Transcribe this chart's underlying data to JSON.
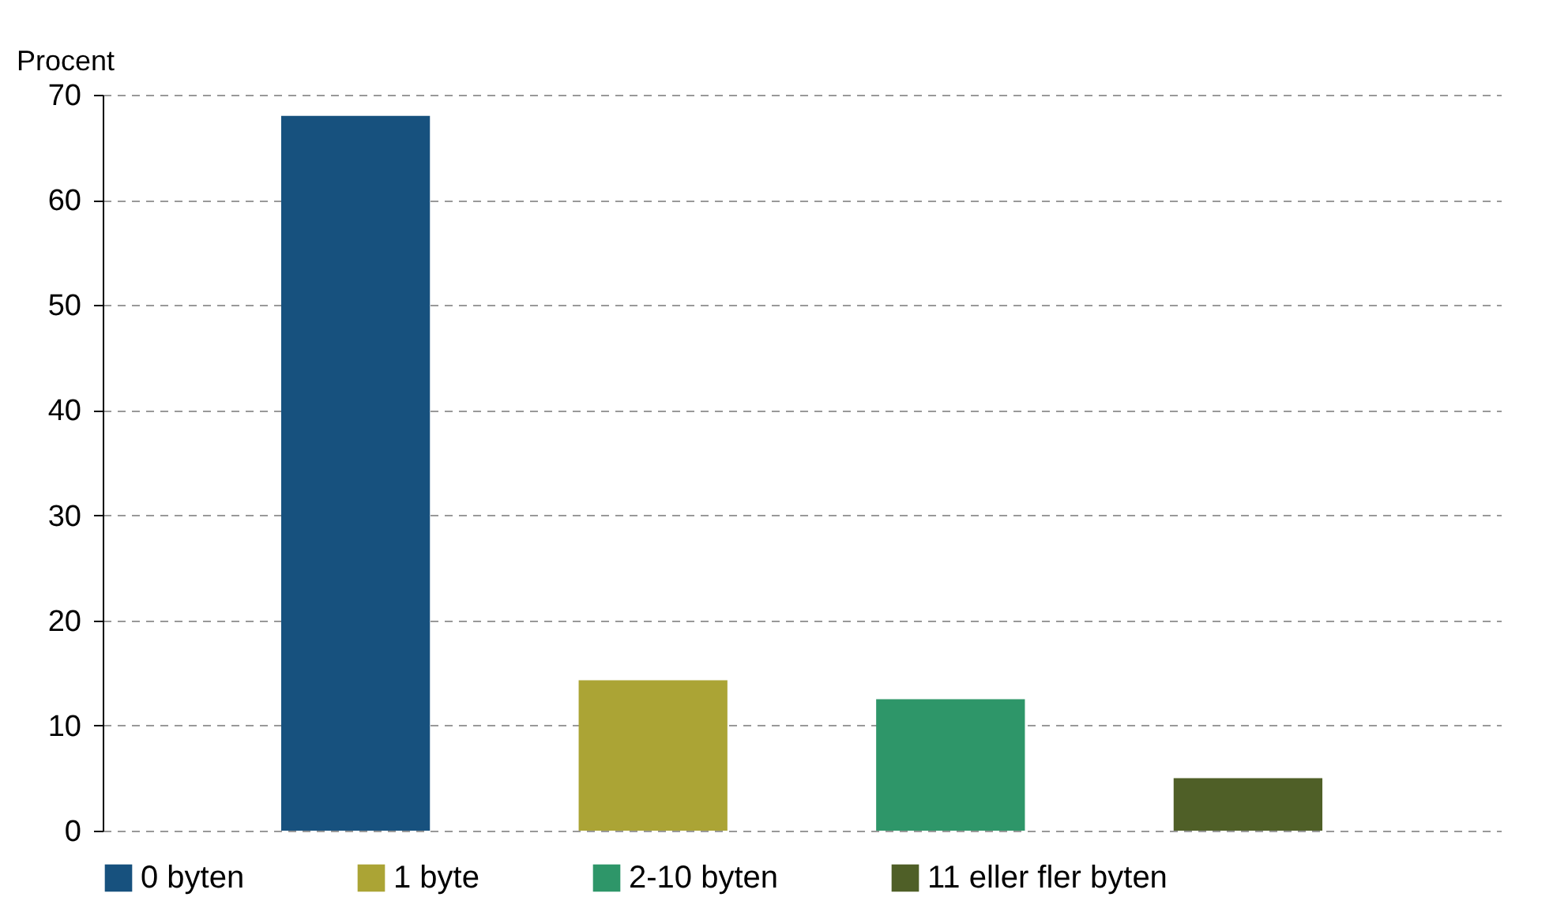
{
  "chart_data": {
    "type": "bar",
    "ylabel": "Procent",
    "categories": [
      null,
      null,
      null,
      null
    ],
    "series": [
      {
        "name": "0 byten",
        "color": "#17517e",
        "values": [
          68.0,
          null,
          null,
          null
        ]
      },
      {
        "name": "1 byte",
        "color": "#aba435",
        "values": [
          null,
          14.3,
          null,
          null
        ]
      },
      {
        "name": "2-10 byten",
        "color": "#2e9669",
        "values": [
          null,
          null,
          12.5,
          null
        ]
      },
      {
        "name": "11 eller fler byten",
        "color": "#4f5f27",
        "values": [
          null,
          null,
          null,
          5.0
        ]
      }
    ],
    "ylim": [
      0,
      70
    ],
    "yticks": [
      0,
      10,
      20,
      30,
      40,
      50,
      60,
      70
    ],
    "grid": "y",
    "legend": "bottom",
    "tick_labels": "y"
  }
}
